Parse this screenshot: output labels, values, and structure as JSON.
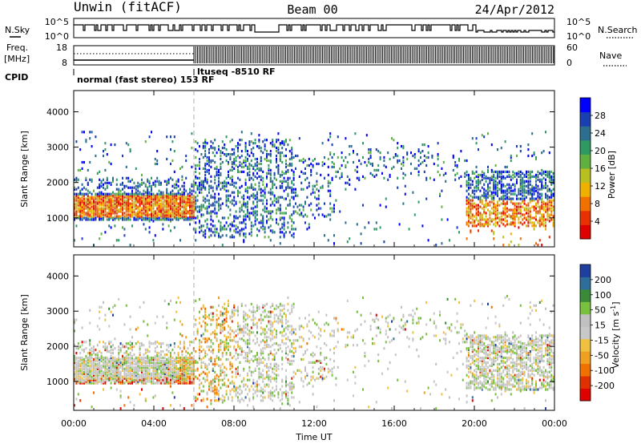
{
  "header": {
    "station": "Unwin (fitACF)",
    "beam": "Beam 00",
    "date": "24/Apr/2012"
  },
  "status_panels": {
    "nsky_label": "N.Sky",
    "nsearch_label": "N.Search",
    "freq_label_top": "Freq.",
    "freq_label_unit": "[MHz]",
    "nave_label": "Nave",
    "cpid_label": "CPID",
    "left_ticks_top": [
      "10^5",
      "10^0"
    ],
    "right_ticks_top": [
      "10^5",
      "10^0"
    ],
    "left_ticks_freq": [
      "18",
      "8"
    ],
    "right_ticks_nave": [
      "60",
      "0"
    ],
    "cpid_text_1": "normal (fast stereo) 153 RF",
    "cpid_text_2": "ltuseq -8510 RF",
    "cpid_switch_hour": 6.0
  },
  "chart_data": [
    {
      "type": "heatmap",
      "quantity": "power",
      "ylabel": "Slant Range [km]",
      "xlabel": "",
      "xlim": [
        0,
        24
      ],
      "ylim": [
        180,
        4600
      ],
      "yticks": [
        1000,
        2000,
        3000,
        4000
      ],
      "colorbar": {
        "label": "Power [dB]",
        "ticks": [
          "4",
          "8",
          "12",
          "16",
          "20",
          "24",
          "28"
        ],
        "colors": [
          "#0000ff",
          "#1a3fb0",
          "#2c6e8e",
          "#2e9a62",
          "#60b040",
          "#b8c020",
          "#f0b000",
          "#f07000",
          "#e83000",
          "#e00000"
        ]
      }
    },
    {
      "type": "heatmap",
      "quantity": "velocity",
      "ylabel": "Slant Range [km]",
      "xlabel": "Time UT",
      "xlim": [
        0,
        24
      ],
      "ylim": [
        180,
        4600
      ],
      "yticks": [
        1000,
        2000,
        3000,
        4000
      ],
      "xtick_labels": [
        "00:00",
        "04:00",
        "08:00",
        "12:00",
        "16:00",
        "20:00",
        "00:00"
      ],
      "colorbar": {
        "label": "Velocity [m s",
        "label_sup": "-1",
        "label_end": "]",
        "ticks": [
          "200",
          "100",
          "50",
          "15",
          "-15",
          "-50",
          "-100",
          "-200"
        ],
        "colors": [
          "#1f3fa0",
          "#2e6e9a",
          "#3a8a3a",
          "#7ac040",
          "#c0c0c0",
          "#c8c8c8",
          "#f0c040",
          "#f0a020",
          "#f07000",
          "#e03000",
          "#e00000"
        ]
      }
    }
  ]
}
